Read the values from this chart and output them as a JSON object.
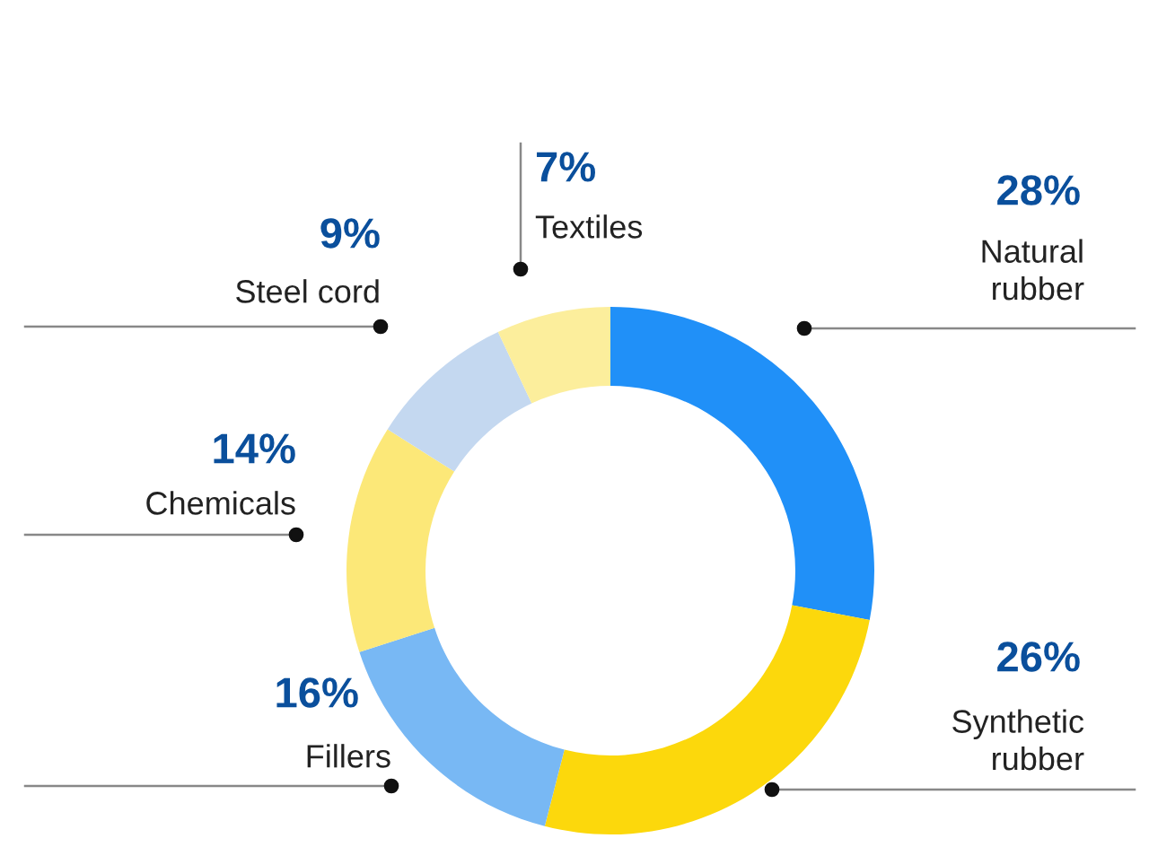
{
  "chart_data": {
    "type": "donut",
    "categories": [
      "Natural\nrubber",
      "Synthetic\nrubber",
      "Fillers",
      "Chemicals",
      "Steel cord",
      "Textiles"
    ],
    "values": [
      28,
      26,
      16,
      14,
      9,
      7
    ],
    "value_labels": [
      "28%",
      "26%",
      "16%",
      "14%",
      "9%",
      "7%"
    ],
    "colors": [
      "#2090f8",
      "#fcd80c",
      "#78b8f4",
      "#fce878",
      "#c4d8f0",
      "#fcee9c"
    ],
    "legend": false
  }
}
